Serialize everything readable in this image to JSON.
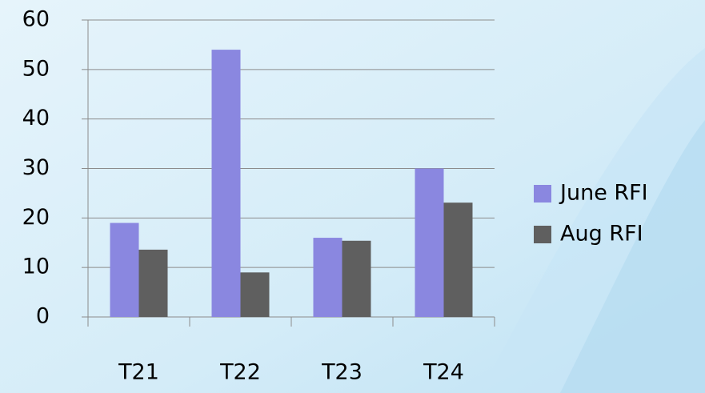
{
  "chart_data": {
    "type": "bar",
    "categories": [
      "T21",
      "T22",
      "T23",
      "T24"
    ],
    "series": [
      {
        "name": "June RFI",
        "color": "#8a87e0",
        "values": [
          19,
          54,
          16,
          30
        ]
      },
      {
        "name": "Aug RFI",
        "color": "#5f5f5f",
        "values": [
          13.6,
          9,
          15.4,
          23.1
        ]
      }
    ],
    "ylim": [
      0,
      60
    ],
    "yticks": [
      0,
      10,
      20,
      30,
      40,
      50,
      60
    ],
    "grid": true,
    "legend": "right"
  }
}
